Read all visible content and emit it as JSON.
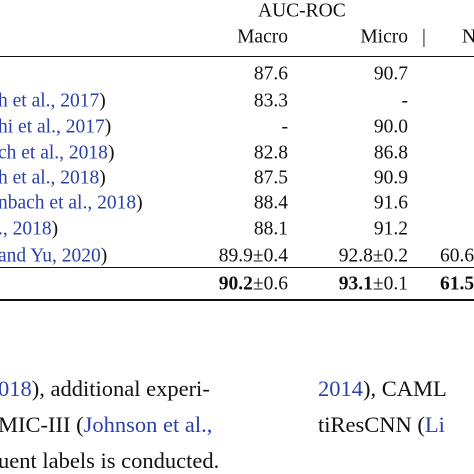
{
  "table": {
    "group_header": "AUC-ROC",
    "columns": [
      "Macro",
      "Micro",
      "N"
    ],
    "separator": "|",
    "rows": [
      {
        "method": [],
        "macro": [
          {
            "text": "87.6"
          }
        ],
        "micro": [
          {
            "text": "90.7"
          }
        ],
        "n": []
      },
      {
        "method": [
          {
            "text": "h et al., 2017",
            "style": "link"
          },
          {
            "text": ")"
          }
        ],
        "macro": [
          {
            "text": "83.3"
          }
        ],
        "micro": [
          {
            "text": "-"
          }
        ],
        "n": []
      },
      {
        "method": [
          {
            "text": "hi et al., 2017",
            "style": "link"
          },
          {
            "text": ")"
          }
        ],
        "macro": [
          {
            "text": "-"
          }
        ],
        "micro": [
          {
            "text": "90.0"
          }
        ],
        "n": []
      },
      {
        "method": [
          {
            "text": "ch et al., 2018",
            "style": "link"
          },
          {
            "text": ")"
          }
        ],
        "macro": [
          {
            "text": "82.8"
          }
        ],
        "micro": [
          {
            "text": "86.8"
          }
        ],
        "n": []
      },
      {
        "method": [
          {
            "text": "h et al., 2018",
            "style": "link"
          },
          {
            "text": ")"
          }
        ],
        "macro": [
          {
            "text": "87.5"
          }
        ],
        "micro": [
          {
            "text": "90.9"
          }
        ],
        "n": []
      },
      {
        "method": [
          {
            "text": "nbach et al., 2018",
            "style": "link"
          },
          {
            "text": ")"
          }
        ],
        "macro": [
          {
            "text": "88.4"
          }
        ],
        "micro": [
          {
            "text": "91.6"
          }
        ],
        "n": []
      },
      {
        "method": [
          {
            "text": "., 2018",
            "style": "link"
          },
          {
            "text": ")"
          }
        ],
        "macro": [
          {
            "text": "88.1"
          }
        ],
        "micro": [
          {
            "text": "91.2"
          }
        ],
        "n": []
      },
      {
        "method": [
          {
            "text": "and Yu, 2020",
            "style": "link"
          },
          {
            "text": ")"
          }
        ],
        "macro": [
          {
            "text": "89.9±0.4"
          }
        ],
        "micro": [
          {
            "text": "92.8±0.2"
          }
        ],
        "n": [
          {
            "text": "60.6"
          }
        ]
      },
      {
        "method": [],
        "macro": [
          {
            "text": "90.2",
            "style": "bold"
          },
          {
            "text": "±0.6"
          }
        ],
        "micro": [
          {
            "text": "93.1",
            "style": "bold"
          },
          {
            "text": "±0.1"
          }
        ],
        "n": [
          {
            "text": "61.5",
            "style": "bold"
          }
        ]
      }
    ]
  },
  "paragraph": {
    "left": [
      [
        {
          "text": "018",
          "style": "link"
        },
        {
          "text": "), additional experi-"
        }
      ],
      [
        {
          "text": "MIC-III ("
        },
        {
          "text": "Johnson et al.,",
          "style": "link"
        }
      ],
      [
        {
          "text": "uent labels is conducted."
        }
      ]
    ],
    "right": [
      [
        {
          "text": "2014",
          "style": "link"
        },
        {
          "text": "), CAML"
        }
      ],
      [
        {
          "text": "tiResCNN ("
        },
        {
          "text": "Li",
          "style": "link"
        }
      ]
    ]
  }
}
